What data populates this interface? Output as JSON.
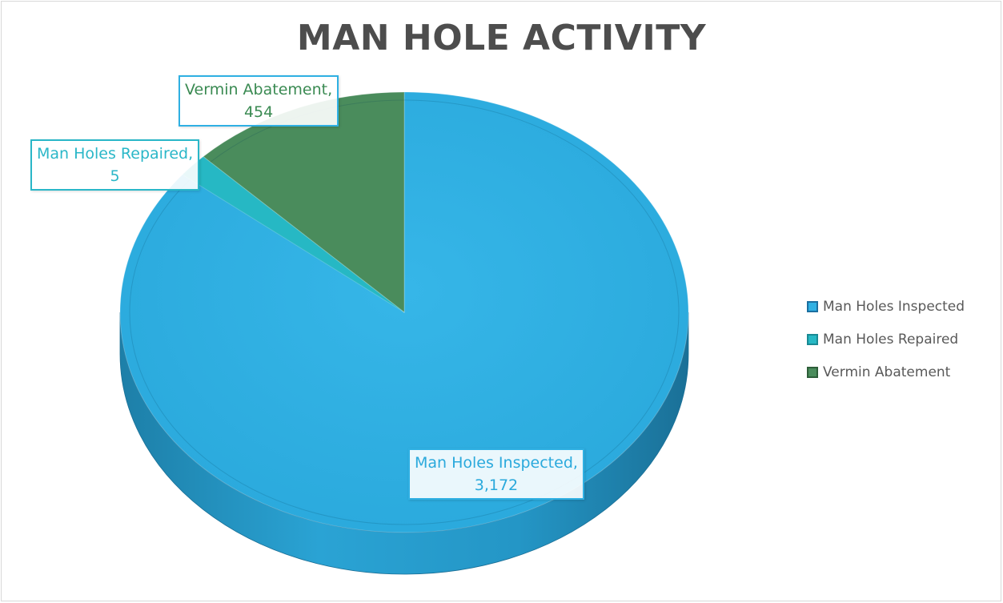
{
  "chart_data": {
    "type": "pie",
    "title": "MAN HOLE ACTIVITY",
    "categories": [
      "Man Holes Inspected",
      "Man Holes Repaired",
      "Vermin Abatement"
    ],
    "values": [
      3172,
      5,
      454
    ],
    "data_labels": [
      {
        "name": "Man Holes Inspected,",
        "value": "3,172"
      },
      {
        "name": "Man Holes Repaired,",
        "value": "5"
      },
      {
        "name": "Vermin Abatement,",
        "value": "454"
      }
    ],
    "colors": [
      "#2fb0e3",
      "#26b8c4",
      "#4a8c5c"
    ],
    "label_colors": [
      "#2aa9dc",
      "#2ab7c8",
      "#3a8a52"
    ],
    "legend_position": "right",
    "style": "3d"
  }
}
